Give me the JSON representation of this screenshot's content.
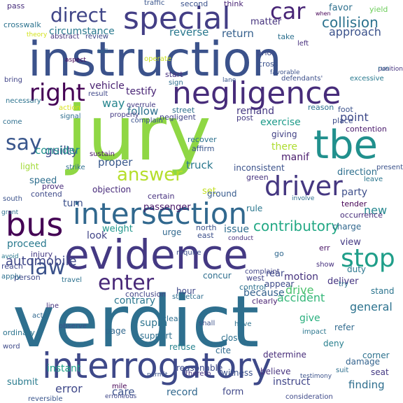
{
  "words": [
    {
      "text": "verdict",
      "color": "#2e6f8e"
    },
    {
      "text": "jury",
      "color": "#8fd744"
    },
    {
      "text": "instruction",
      "color": "#3b528b"
    },
    {
      "text": "evidence",
      "color": "#443983"
    },
    {
      "text": "interrogatory",
      "color": "#3e4989"
    },
    {
      "text": "intersection",
      "color": "#31688e"
    },
    {
      "text": "negligence",
      "color": "#472c7a"
    },
    {
      "text": "tbe",
      "color": "#21908d"
    },
    {
      "text": "special",
      "color": "#433e85"
    },
    {
      "text": "bus",
      "color": "#440154"
    },
    {
      "text": "driver",
      "color": "#453781"
    },
    {
      "text": "stop",
      "color": "#1f9e89"
    },
    {
      "text": "right",
      "color": "#440154"
    },
    {
      "text": "answer",
      "color": "#b5de2b"
    },
    {
      "text": "say",
      "color": "#39568c"
    },
    {
      "text": "direct",
      "color": "#404688"
    },
    {
      "text": "car",
      "color": "#482576"
    },
    {
      "text": "law",
      "color": "#3b528b"
    },
    {
      "text": "enter",
      "color": "#482878"
    },
    {
      "text": "collision",
      "color": "#2c728e"
    },
    {
      "text": "contributory",
      "color": "#22a884"
    },
    {
      "text": "automobile",
      "color": "#3f4788"
    },
    {
      "text": "circumstance",
      "color": "#29798e"
    },
    {
      "text": "vehicle",
      "color": "#481f70"
    },
    {
      "text": "testify",
      "color": "#482475"
    },
    {
      "text": "way",
      "color": "#25858e"
    },
    {
      "text": "follow",
      "color": "#2d708e"
    },
    {
      "text": "exercise",
      "color": "#1e9b8a"
    },
    {
      "text": "point",
      "color": "#3e4a89"
    },
    {
      "text": "reverse",
      "color": "#2a788e"
    },
    {
      "text": "return",
      "color": "#35608d"
    },
    {
      "text": "approach",
      "color": "#3b528b"
    },
    {
      "text": "matter",
      "color": "#46337e"
    },
    {
      "text": "favor",
      "color": "#2d708e"
    },
    {
      "text": "yield",
      "color": "#6ccd5a"
    },
    {
      "text": "truck",
      "color": "#2a788e"
    },
    {
      "text": "guilty",
      "color": "#3e4989"
    },
    {
      "text": "consider",
      "color": "#20928c"
    },
    {
      "text": "proper",
      "color": "#38588c"
    },
    {
      "text": "remand",
      "color": "#453882"
    },
    {
      "text": "manif",
      "color": "#481a6c"
    },
    {
      "text": "give",
      "color": "#2ab07f"
    },
    {
      "text": "rear",
      "color": "#3e4989"
    },
    {
      "text": "motion",
      "color": "#46327e"
    },
    {
      "text": "drive",
      "color": "#4ac16d"
    },
    {
      "text": "accident",
      "color": "#35b779"
    },
    {
      "text": "general",
      "color": "#2c728e"
    },
    {
      "text": "new",
      "color": "#24868e"
    },
    {
      "text": "party",
      "color": "#3d4e8a"
    },
    {
      "text": "direction",
      "color": "#2e6f8e"
    },
    {
      "text": "issue",
      "color": "#2f6c8e"
    },
    {
      "text": "weight",
      "color": "#1f968b"
    },
    {
      "text": "look",
      "color": "#414487"
    },
    {
      "text": "turn",
      "color": "#3c508b"
    },
    {
      "text": "speed",
      "color": "#2e6e8e"
    },
    {
      "text": "passenger",
      "color": "#481668"
    },
    {
      "text": "proceed",
      "color": "#29798e"
    },
    {
      "text": "view",
      "color": "#443a83"
    },
    {
      "text": "supra",
      "color": "#2c738e"
    },
    {
      "text": "contrary",
      "color": "#2a768e"
    },
    {
      "text": "because",
      "color": "#34618d"
    },
    {
      "text": "error",
      "color": "#3f4889"
    },
    {
      "text": "record",
      "color": "#31688e"
    },
    {
      "text": "care",
      "color": "#3b518b"
    },
    {
      "text": "instruct",
      "color": "#404588"
    },
    {
      "text": "finding",
      "color": "#2e6e8e"
    },
    {
      "text": "damage",
      "color": "#33638d"
    },
    {
      "text": "form",
      "color": "#3f4788"
    },
    {
      "text": "submit",
      "color": "#297b8e"
    },
    {
      "text": "instant",
      "color": "#1fa088"
    },
    {
      "text": "light",
      "color": "#a2da37"
    },
    {
      "text": "there",
      "color": "#addc30"
    },
    {
      "text": "set",
      "color": "#c2df23"
    },
    {
      "text": "recover",
      "color": "#2c718e"
    },
    {
      "text": "affirm",
      "color": "#39558c"
    },
    {
      "text": "giving",
      "color": "#424186"
    },
    {
      "text": "place",
      "color": "#3d4d8a"
    },
    {
      "text": "contention",
      "color": "#48186a"
    },
    {
      "text": "tender",
      "color": "#440154"
    },
    {
      "text": "charge",
      "color": "#31688e"
    },
    {
      "text": "occurrence",
      "color": "#472d7b"
    },
    {
      "text": "duty",
      "color": "#2a768e"
    },
    {
      "text": "err",
      "color": "#471365"
    },
    {
      "text": "deliver",
      "color": "#453581"
    },
    {
      "text": "stand",
      "color": "#2b748e"
    },
    {
      "text": "corner",
      "color": "#2c718e"
    },
    {
      "text": "seat",
      "color": "#443983"
    },
    {
      "text": "refer",
      "color": "#306a8e"
    },
    {
      "text": "deny",
      "color": "#277f8e"
    },
    {
      "text": "close",
      "color": "#2d708e"
    },
    {
      "text": "witness",
      "color": "#3b518b"
    },
    {
      "text": "believe",
      "color": "#46327e"
    },
    {
      "text": "determine",
      "color": "#472c7a"
    },
    {
      "text": "reasonable",
      "color": "#3e4a89"
    },
    {
      "text": "refuse",
      "color": "#26828e"
    },
    {
      "text": "support",
      "color": "#2e6f8e"
    },
    {
      "text": "conclusion",
      "color": "#414487"
    },
    {
      "text": "hour",
      "color": "#3f4889"
    },
    {
      "text": "appear",
      "color": "#3e4a89"
    },
    {
      "text": "objection",
      "color": "#472a7a"
    },
    {
      "text": "certain",
      "color": "#46307e"
    },
    {
      "text": "ground",
      "color": "#375b8d"
    },
    {
      "text": "rule",
      "color": "#2a778e"
    },
    {
      "text": "inconsistent",
      "color": "#3b528b"
    },
    {
      "text": "urge",
      "color": "#31688e"
    },
    {
      "text": "north",
      "color": "#3a538b"
    },
    {
      "text": "east",
      "color": "#3c4f8a"
    },
    {
      "text": "west",
      "color": "#414287"
    },
    {
      "text": "concur",
      "color": "#2e6e8e"
    },
    {
      "text": "control",
      "color": "#2d708e"
    },
    {
      "text": "cite",
      "color": "#306a8e"
    },
    {
      "text": "page",
      "color": "#31688e"
    },
    {
      "text": "clear",
      "color": "#2e6e8e"
    },
    {
      "text": "clearly",
      "color": "#481f70"
    },
    {
      "text": "pass",
      "color": "#472d7b"
    },
    {
      "text": "crosswalk",
      "color": "#2c728e"
    },
    {
      "text": "traffic",
      "color": "#39558c"
    },
    {
      "text": "second",
      "color": "#3b528b"
    },
    {
      "text": "think",
      "color": "#482475"
    },
    {
      "text": "abstract",
      "color": "#46337e"
    },
    {
      "text": "review",
      "color": "#3e4989"
    },
    {
      "text": "theory",
      "color": "#d2e21b"
    },
    {
      "text": "necessary",
      "color": "#2c738e"
    },
    {
      "text": "bring",
      "color": "#414487"
    },
    {
      "text": "come",
      "color": "#2e6f8e"
    },
    {
      "text": "take",
      "color": "#2d708e"
    },
    {
      "text": "prior",
      "color": "#3e4a89"
    },
    {
      "text": "cross",
      "color": "#3b528b"
    },
    {
      "text": "left",
      "color": "#472f7d"
    },
    {
      "text": "favorable",
      "color": "#3b518b"
    },
    {
      "text": "tell",
      "color": "#31688e"
    },
    {
      "text": "aspect",
      "color": "#440154"
    },
    {
      "text": "operate",
      "color": "#c8e020"
    },
    {
      "text": "start",
      "color": "#46307e"
    },
    {
      "text": "sign",
      "color": "#2e6e8e"
    },
    {
      "text": "lane",
      "color": "#39568c"
    },
    {
      "text": "defendants'",
      "color": "#3c4f8a"
    },
    {
      "text": "excessive",
      "color": "#29798e"
    },
    {
      "text": "position",
      "color": "#46327e"
    },
    {
      "text": "run",
      "color": "#31688e"
    },
    {
      "text": "when",
      "color": "#440154"
    },
    {
      "text": "result",
      "color": "#3f4788"
    },
    {
      "text": "overrule",
      "color": "#443983"
    },
    {
      "text": "action",
      "color": "#d8e219"
    },
    {
      "text": "signal",
      "color": "#2e6e8e"
    },
    {
      "text": "strike",
      "color": "#2e6f8e"
    },
    {
      "text": "properly",
      "color": "#443a83"
    },
    {
      "text": "complain",
      "color": "#3b528b"
    },
    {
      "text": "negligent",
      "color": "#414487"
    },
    {
      "text": "street",
      "color": "#2e6f8e"
    },
    {
      "text": "post",
      "color": "#443983"
    },
    {
      "text": "reason",
      "color": "#2c718e"
    },
    {
      "text": "foot",
      "color": "#3b518b"
    },
    {
      "text": "sustain",
      "color": "#471365"
    },
    {
      "text": "green",
      "color": "#46327e"
    },
    {
      "text": "leave",
      "color": "#2a768e"
    },
    {
      "text": "present",
      "color": "#3b528b"
    },
    {
      "text": "prove",
      "color": "#472a7a"
    },
    {
      "text": "contend",
      "color": "#3e4a89"
    },
    {
      "text": "south",
      "color": "#3b528b"
    },
    {
      "text": "injury",
      "color": "#443983"
    },
    {
      "text": "avoid",
      "color": "#2a788e"
    },
    {
      "text": "reach",
      "color": "#3f4889"
    },
    {
      "text": "person",
      "color": "#3e4989"
    },
    {
      "text": "apply",
      "color": "#2d708e"
    },
    {
      "text": "travel",
      "color": "#2c718e"
    },
    {
      "text": "require",
      "color": "#3c4f8a"
    },
    {
      "text": "go",
      "color": "#31688e"
    },
    {
      "text": "show",
      "color": "#46307e"
    },
    {
      "text": "try",
      "color": "#2c718e"
    },
    {
      "text": "complaint",
      "color": "#414487"
    },
    {
      "text": "streetcar",
      "color": "#2e6e8e"
    },
    {
      "text": "impact",
      "color": "#2a768e"
    },
    {
      "text": "testimony",
      "color": "#3b528b"
    },
    {
      "text": "thereto",
      "color": "#46327e"
    },
    {
      "text": "suit",
      "color": "#2e6f8e"
    },
    {
      "text": "consideration",
      "color": "#3e4989"
    },
    {
      "text": "have",
      "color": "#2c718e"
    },
    {
      "text": "shall",
      "color": "#3b518b"
    },
    {
      "text": "ordinary",
      "color": "#2c738e"
    },
    {
      "text": "word",
      "color": "#3e4a89"
    },
    {
      "text": "line",
      "color": "#46327e"
    },
    {
      "text": "act",
      "color": "#31688e"
    },
    {
      "text": "observe",
      "color": "#3b528b"
    },
    {
      "text": "mile",
      "color": "#440154"
    },
    {
      "text": "reversible",
      "color": "#39558c"
    },
    {
      "text": "erroneous",
      "color": "#3f4788"
    },
    {
      "text": "permit",
      "color": "#3b528b"
    },
    {
      "text": "involve",
      "color": "#2e6e8e"
    },
    {
      "text": "conduct",
      "color": "#46307e"
    },
    {
      "text": "grant",
      "color": "#2d708e"
    }
  ]
}
